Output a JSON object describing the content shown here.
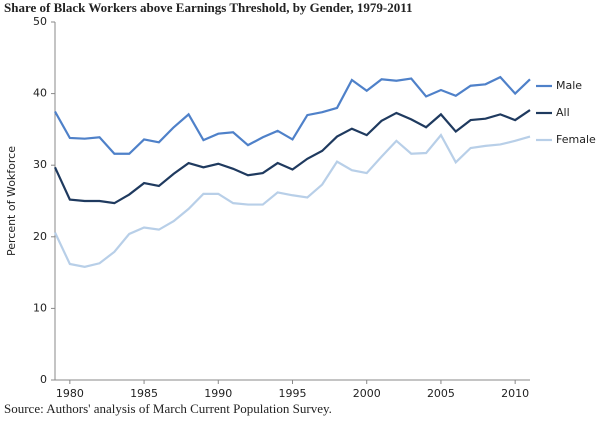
{
  "chart_data": {
    "type": "line",
    "title": "Share of Black Workers above Earnings Threshold, by Gender, 1979-2011",
    "y_label": "Percent of Wokforce",
    "source": "Source: Authors' analysis of March Current Population Survey.",
    "x": [
      1979,
      1980,
      1981,
      1982,
      1983,
      1984,
      1985,
      1986,
      1987,
      1988,
      1989,
      1990,
      1991,
      1992,
      1993,
      1994,
      1995,
      1996,
      1997,
      1998,
      1999,
      2000,
      2001,
      2002,
      2003,
      2004,
      2005,
      2006,
      2007,
      2008,
      2009,
      2010,
      2011
    ],
    "series": [
      {
        "name": "Male",
        "color": "#4f81c9",
        "values": [
          37.5,
          33.8,
          33.7,
          33.9,
          31.6,
          31.6,
          33.6,
          33.2,
          35.3,
          37.1,
          33.5,
          34.4,
          34.6,
          32.8,
          33.9,
          34.8,
          33.6,
          37.0,
          37.4,
          38.0,
          41.9,
          40.4,
          42.0,
          41.8,
          42.1,
          39.6,
          40.5,
          39.7,
          41.1,
          41.3,
          42.3,
          40.0,
          42.0
        ]
      },
      {
        "name": "All",
        "color": "#1f3a5f",
        "values": [
          29.7,
          25.2,
          25.0,
          25.0,
          24.7,
          25.9,
          27.5,
          27.1,
          28.8,
          30.3,
          29.7,
          30.2,
          29.5,
          28.6,
          28.9,
          30.3,
          29.4,
          30.9,
          32.0,
          34.0,
          35.1,
          34.2,
          36.2,
          37.3,
          36.4,
          35.3,
          37.1,
          34.7,
          36.3,
          36.5,
          37.1,
          36.3,
          37.7
        ]
      },
      {
        "name": "Female",
        "color": "#b8cfe8",
        "values": [
          20.6,
          16.2,
          15.8,
          16.3,
          17.9,
          20.4,
          21.3,
          21.0,
          22.2,
          23.9,
          26.0,
          26.0,
          24.7,
          24.5,
          24.5,
          26.2,
          25.8,
          25.5,
          27.3,
          30.5,
          29.3,
          28.9,
          31.2,
          33.4,
          31.6,
          31.7,
          34.2,
          30.4,
          32.4,
          32.7,
          32.9,
          33.4,
          34.0
        ]
      }
    ],
    "xlim": [
      1979,
      2011
    ],
    "xticks": [
      1980,
      1985,
      1990,
      1995,
      2000,
      2005,
      2010
    ],
    "ylim": [
      0,
      50
    ],
    "yticks": [
      0,
      10,
      20,
      30,
      40,
      50
    ],
    "legend": "right"
  }
}
